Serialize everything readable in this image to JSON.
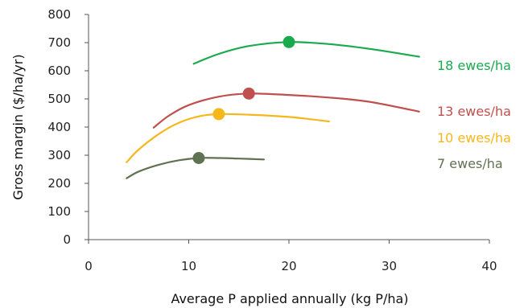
{
  "chart_data": {
    "type": "line",
    "xlabel": "Average P applied annually (kg P/ha)",
    "ylabel": "Gross margin ($/ha/yr)",
    "xlim": [
      0,
      40
    ],
    "ylim": [
      0,
      800
    ],
    "x_ticks": [
      0,
      10,
      20,
      30,
      40
    ],
    "y_ticks": [
      0,
      100,
      200,
      300,
      400,
      500,
      600,
      700,
      800
    ],
    "grid": false,
    "legend": "none",
    "series": [
      {
        "name": "18 ewes/ha",
        "color": "#1aaa4e",
        "points": [
          [
            10.5,
            625
          ],
          [
            13,
            660
          ],
          [
            16,
            688
          ],
          [
            20,
            702
          ],
          [
            24,
            695
          ],
          [
            28,
            678
          ],
          [
            33,
            650
          ]
        ],
        "optimum": [
          20,
          702
        ]
      },
      {
        "name": "13 ewes/ha",
        "color": "#c0504d",
        "points": [
          [
            6.5,
            398
          ],
          [
            8,
            440
          ],
          [
            10,
            478
          ],
          [
            13,
            508
          ],
          [
            16,
            519
          ],
          [
            20,
            514
          ],
          [
            24,
            505
          ],
          [
            28,
            490
          ],
          [
            33,
            455
          ]
        ],
        "optimum": [
          16,
          519
        ]
      },
      {
        "name": "10 ewes/ha",
        "color": "#f6b71c",
        "points": [
          [
            3.8,
            275
          ],
          [
            5,
            320
          ],
          [
            7,
            375
          ],
          [
            9,
            415
          ],
          [
            11,
            438
          ],
          [
            13,
            446
          ],
          [
            16,
            444
          ],
          [
            20,
            436
          ],
          [
            24,
            420
          ]
        ],
        "optimum": [
          13,
          446
        ]
      },
      {
        "name": "7 ewes/ha",
        "color": "#5f7251",
        "points": [
          [
            3.8,
            218
          ],
          [
            5,
            242
          ],
          [
            7,
            266
          ],
          [
            9,
            282
          ],
          [
            11,
            290
          ],
          [
            13,
            290
          ],
          [
            15,
            288
          ],
          [
            17.5,
            285
          ]
        ],
        "optimum": [
          11,
          290
        ]
      }
    ]
  }
}
